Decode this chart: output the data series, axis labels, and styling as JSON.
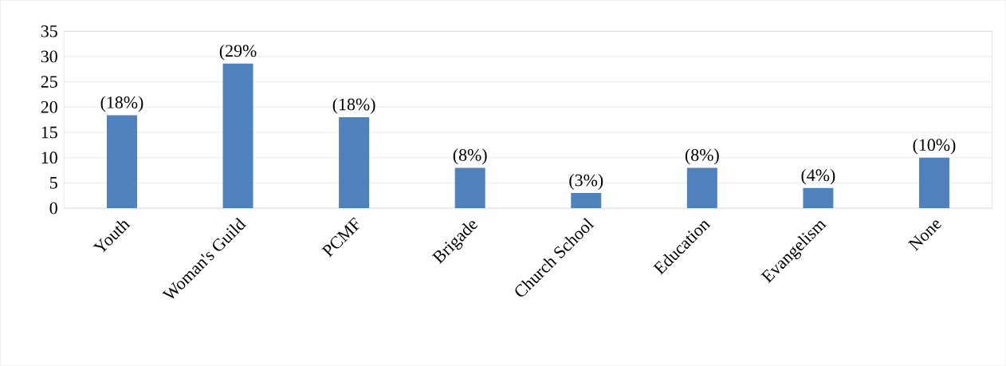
{
  "chart_data": {
    "type": "bar",
    "categories": [
      "Youth",
      "Woman's Guild",
      "PCMF",
      "Brigade",
      "Church School",
      "Education",
      "Evangelism",
      "None"
    ],
    "values": [
      18.4,
      28.6,
      18,
      8,
      3,
      8,
      4,
      10
    ],
    "value_labels": [
      "(18%)",
      "(29%",
      "(18%)",
      "(8%)",
      "(3%)",
      "(8%)",
      "(4%)",
      "(10%)"
    ],
    "color": "#4f81bd",
    "ylim": [
      0,
      35
    ],
    "yticks": [
      0,
      5,
      10,
      15,
      20,
      25,
      30,
      35
    ],
    "grid": "y"
  }
}
